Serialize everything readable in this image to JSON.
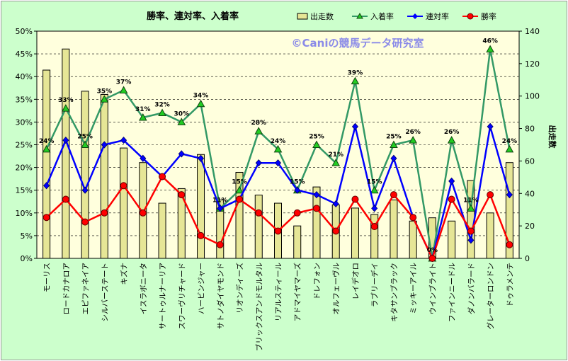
{
  "chart_data": {
    "type": "bar",
    "title": "勝率、連対率、入着率",
    "watermark": "©Caniの競馬データ研究室",
    "y2label": "出走数",
    "categories": [
      "モーリス",
      "ロードカナロア",
      "エピファネイア",
      "シルバーステート",
      "キズナ",
      "イスラボニータ",
      "サートゥルナーリア",
      "スワーヴリチャード",
      "ハービンジャー",
      "サトノダイヤモンド",
      "リオンディーズ",
      "ブリックスアンドモルタル",
      "リアルスティール",
      "アドマイヤマーズ",
      "ドレフォン",
      "オルフェーヴル",
      "レイデオロ",
      "ラブリーデイ",
      "キタサンブラック",
      "ミッキーアイル",
      "ウインブライト",
      "ファインニードル",
      "ダノンバラード",
      "グレーターロンドン",
      "ドゥラメンテ"
    ],
    "ylim": [
      0,
      50
    ],
    "y2lim": [
      0,
      140
    ],
    "y_ticks": [
      "0%",
      "5%",
      "10%",
      "15%",
      "20%",
      "25%",
      "30%",
      "35%",
      "40%",
      "45%",
      "50%"
    ],
    "y2_ticks": [
      "0",
      "20",
      "40",
      "60",
      "80",
      "100",
      "120",
      "140"
    ],
    "legend": {
      "position": "top",
      "labels": [
        "出走数",
        "入着率",
        "連対率",
        "勝率"
      ]
    },
    "colors": {
      "bar": "#e6e696",
      "bar_edge": "#000000",
      "nyuchaku": "#339966",
      "nyuchaku_marker": "#22cc22",
      "rentai": "#0000ff",
      "shoritsu": "#ff0000",
      "plot_bg": "#ffffdd"
    },
    "series": [
      {
        "name": "出走数",
        "axis": "right",
        "values": [
          116,
          129,
          103,
          101,
          68,
          59,
          34,
          43,
          64,
          36,
          53,
          39,
          34,
          20,
          44,
          33,
          31,
          27,
          36,
          23,
          25,
          23,
          48,
          28,
          59
        ]
      },
      {
        "name": "入着率",
        "axis": "left",
        "values": [
          24,
          33,
          25,
          35,
          37,
          31,
          32,
          30,
          34,
          11,
          15,
          28,
          24,
          15,
          25,
          21,
          39,
          15,
          25,
          26,
          0,
          26,
          11,
          46,
          24
        ]
      },
      {
        "name": "連対率",
        "axis": "left",
        "values": [
          16,
          26,
          15,
          25,
          26,
          22,
          18,
          23,
          22,
          11,
          13,
          21,
          21,
          15,
          14,
          12,
          29,
          11,
          22,
          9,
          0,
          17,
          4,
          29,
          14
        ]
      },
      {
        "name": "勝率",
        "axis": "left",
        "values": [
          9,
          13,
          8,
          10,
          16,
          10,
          18,
          14,
          5,
          3,
          13,
          10,
          6,
          10,
          11,
          6,
          13,
          7,
          14,
          9,
          0,
          13,
          6,
          14,
          3
        ]
      }
    ],
    "data_labels": [
      "24%",
      "33%",
      "25%",
      "35%",
      "37%",
      "31%",
      "32%",
      "30%",
      "34%",
      "11%",
      "15%",
      "28%",
      "24%",
      "15%",
      "25%",
      "21%",
      "39%",
      "15%",
      "25%",
      "26%",
      "0%",
      "26%",
      "11%",
      "46%",
      "24%"
    ]
  }
}
